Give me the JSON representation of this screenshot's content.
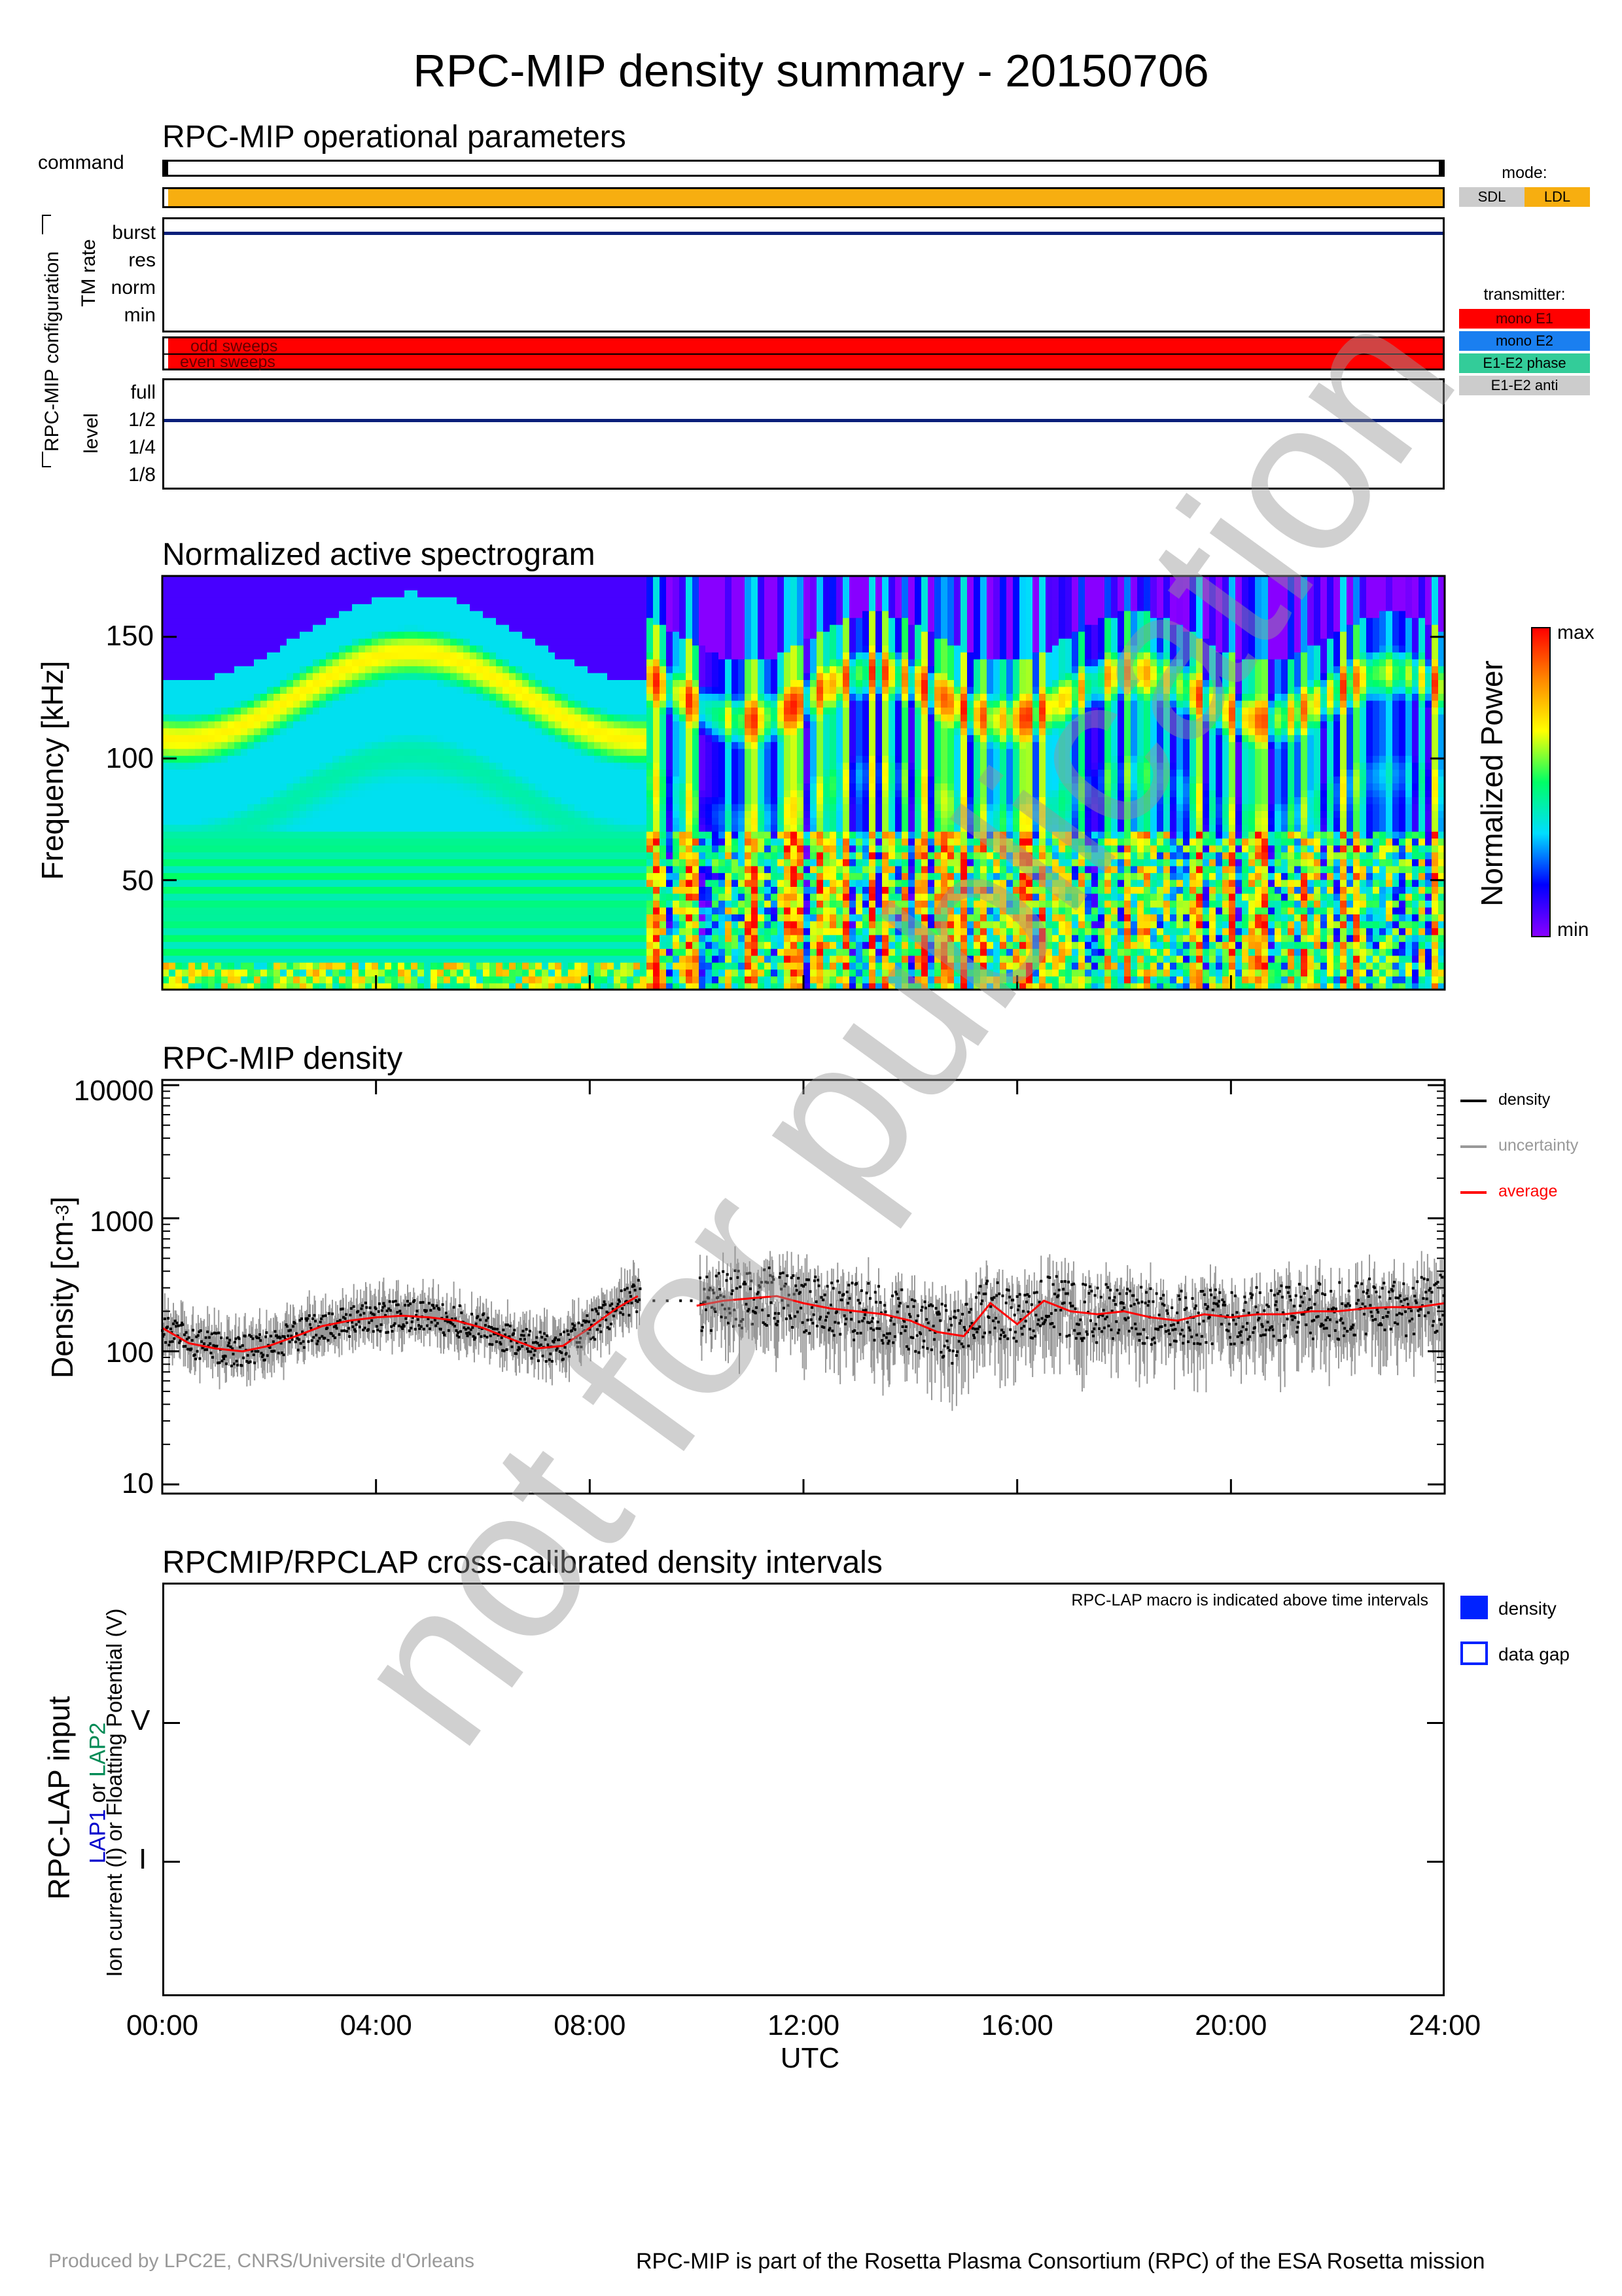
{
  "title": "RPC-MIP density summary - 20150706",
  "watermark": "not for publication",
  "panel1": {
    "title": "RPC-MIP operational parameters",
    "command_label": "command",
    "config_label": "RPC-MIP configuration",
    "tm_rate_label": "TM rate",
    "tm_rate_levels": [
      "burst",
      "res",
      "norm",
      "min"
    ],
    "tm_rate_value": "burst",
    "sweep_labels": {
      "odd": "odd sweeps",
      "even": "even sweeps"
    },
    "level_label": "level",
    "levels": [
      "full",
      "1/2",
      "1/4",
      "1/8"
    ],
    "level_value": "1/2",
    "mode_legend": {
      "title": "mode:",
      "items": [
        {
          "label": "SDL",
          "color": "#cccccc"
        },
        {
          "label": "LDL",
          "color": "#f7ae10"
        }
      ]
    },
    "transmitter_legend": {
      "title": "transmitter:",
      "items": [
        {
          "label": "mono E1",
          "color": "#ff0000"
        },
        {
          "label": "mono E2",
          "color": "#1a7ff0"
        },
        {
          "label": "E1-E2 phase",
          "color": "#33cc99"
        },
        {
          "label": "E1-E2 anti",
          "color": "#cccccc"
        }
      ]
    },
    "mode_color": "#f7ae10",
    "transmitter_color": "#ff0000",
    "level_line_color": "#0a1f7a"
  },
  "panel2": {
    "title": "Normalized active spectrogram",
    "ylabel": "Frequency [kHz]",
    "yticks": [
      "150",
      "100",
      "50"
    ],
    "colorbar_label": "Normalized Power",
    "colorbar_max": "max",
    "colorbar_min": "min"
  },
  "panel3": {
    "title": "RPC-MIP density",
    "ylabel": "Density [cm",
    "ylabel_sup": "-3",
    "ylabel_end": "]",
    "yticks": [
      "10000",
      "1000",
      "100",
      "10"
    ],
    "legend": [
      {
        "label": "density",
        "color": "#000000"
      },
      {
        "label": "uncertainty",
        "color": "#999999"
      },
      {
        "label": "average",
        "color": "#ff0000"
      }
    ]
  },
  "panel4": {
    "title": "RPCMIP/RPCLAP cross-calibrated density intervals",
    "note": "RPC-LAP macro is indicated above time intervals",
    "ylabel_main": "RPC-LAP input",
    "ylabel_lap1": "LAP1",
    "ylabel_or": " or ",
    "ylabel_lap2": "LAP2",
    "ylabel_line3": "Ion current (I) or Floatting Potential (V)",
    "yticks": [
      "V",
      "I"
    ],
    "legend": [
      {
        "label": "density",
        "filled": true,
        "color": "#0022ff"
      },
      {
        "label": "data gap",
        "filled": false,
        "color": "#0022ff"
      }
    ]
  },
  "xaxis": {
    "ticks": [
      "00:00",
      "04:00",
      "08:00",
      "12:00",
      "16:00",
      "20:00",
      "24:00"
    ],
    "label": "UTC"
  },
  "footer": {
    "left": "Produced by LPC2E, CNRS/Universite d'Orleans",
    "right": "RPC-MIP is part of the Rosetta Plasma Consortium (RPC) of the ESA Rosetta mission"
  },
  "chart_data": [
    {
      "type": "heatmap",
      "title": "Normalized active spectrogram",
      "ylabel": "Frequency [kHz]",
      "ylim": [
        5,
        175
      ],
      "yticks": [
        50,
        100,
        150
      ],
      "xlim": [
        "00:00",
        "24:00"
      ],
      "colorscale": [
        "purple",
        "blue",
        "cyan",
        "green",
        "yellow",
        "orange",
        "red"
      ]
    },
    {
      "type": "line",
      "title": "RPC-MIP density",
      "xlabel": "UTC",
      "ylabel": "Density [cm-3]",
      "yscale": "log",
      "ylim": [
        10,
        10000
      ],
      "xlim": [
        0,
        24
      ],
      "legend": "right",
      "series": [
        {
          "name": "average",
          "x": [
            0,
            0.5,
            1,
            1.5,
            2,
            2.5,
            3,
            3.5,
            4,
            4.5,
            5,
            5.5,
            6,
            6.5,
            7,
            7.5,
            8,
            8.5,
            8.9,
            10,
            10.5,
            11,
            11.5,
            12,
            12.5,
            13,
            13.5,
            14,
            14.5,
            15,
            15.5,
            16,
            16.5,
            17,
            17.5,
            18,
            18.5,
            19,
            19.5,
            20,
            20.5,
            21,
            21.5,
            22,
            22.5,
            23,
            23.5,
            24
          ],
          "y": [
            150,
            115,
            105,
            100,
            110,
            130,
            155,
            170,
            180,
            185,
            180,
            170,
            150,
            125,
            105,
            110,
            150,
            210,
            260,
            220,
            240,
            250,
            260,
            230,
            210,
            200,
            190,
            170,
            140,
            130,
            230,
            160,
            240,
            200,
            190,
            200,
            180,
            170,
            190,
            180,
            190,
            190,
            200,
            200,
            210,
            215,
            215,
            230
          ]
        }
      ]
    }
  ]
}
